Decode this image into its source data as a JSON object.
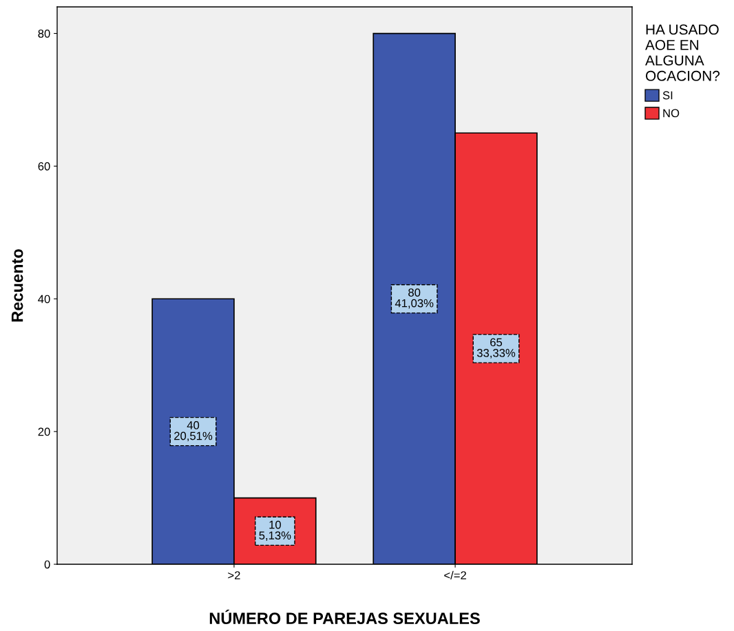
{
  "chart_data": {
    "type": "bar",
    "xlabel": "NÚMERO DE PAREJAS SEXUALES",
    "ylabel": "Recuento",
    "legend_title": "HA USADO\nAOE EN\nALGUNA\nOCACION?",
    "categories": [
      ">2",
      "</=2"
    ],
    "series": [
      {
        "name": "SI",
        "color": "#3e58ac",
        "values": [
          40,
          80
        ],
        "value_labels": [
          "40\n20,51%",
          "80\n41,03%"
        ]
      },
      {
        "name": "NO",
        "color": "#ef3237",
        "values": [
          10,
          65
        ],
        "value_labels": [
          "10\n5,13%",
          "65\n33,33%"
        ]
      }
    ],
    "ylim": [
      0,
      84
    ],
    "yticks": [
      0,
      20,
      40,
      60,
      80
    ],
    "grid": false,
    "legend": "top right"
  }
}
